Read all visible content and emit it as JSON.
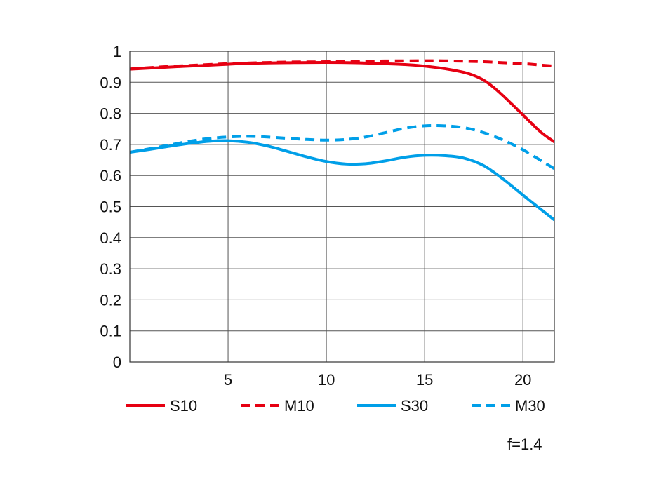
{
  "chart_data": {
    "type": "line",
    "title": "",
    "xlabel": "",
    "ylabel": "",
    "xlim": [
      0,
      21.6
    ],
    "ylim": [
      0,
      1
    ],
    "x_ticks": [
      5,
      10,
      15,
      20
    ],
    "y_ticks": [
      0,
      0.1,
      0.2,
      0.3,
      0.4,
      0.5,
      0.6,
      0.7,
      0.8,
      0.9,
      1
    ],
    "y_tick_labels": [
      "0",
      "0.1",
      "0.2",
      "0.3",
      "0.4",
      "0.5",
      "0.6",
      "0.7",
      "0.8",
      "0.9",
      "1"
    ],
    "grid": true,
    "legend_position": "bottom",
    "annotation": "f=1.4",
    "series": [
      {
        "name": "S10",
        "color": "#e60012",
        "dash": "solid",
        "x": [
          0,
          2,
          4,
          5,
          6,
          8,
          10,
          12,
          14,
          15,
          16,
          17,
          17.5,
          18,
          18.5,
          19,
          19.5,
          20,
          20.5,
          21,
          21.6
        ],
        "y": [
          0.942,
          0.949,
          0.955,
          0.958,
          0.961,
          0.963,
          0.964,
          0.962,
          0.957,
          0.952,
          0.944,
          0.932,
          0.922,
          0.907,
          0.884,
          0.856,
          0.826,
          0.795,
          0.764,
          0.735,
          0.708
        ]
      },
      {
        "name": "M10",
        "color": "#e60012",
        "dash": "dashed",
        "x": [
          0,
          2,
          4,
          5,
          6,
          8,
          10,
          12,
          14,
          16,
          18,
          19,
          20,
          21,
          21.6
        ],
        "y": [
          0.943,
          0.951,
          0.957,
          0.96,
          0.962,
          0.965,
          0.966,
          0.968,
          0.969,
          0.969,
          0.966,
          0.963,
          0.96,
          0.955,
          0.952
        ]
      },
      {
        "name": "S30",
        "color": "#009fe8",
        "dash": "solid",
        "x": [
          0,
          1,
          2,
          3,
          4,
          5,
          6,
          7,
          8,
          9,
          10,
          11,
          12,
          13,
          14,
          15,
          16,
          17,
          18,
          19,
          20,
          21,
          21.6
        ],
        "y": [
          0.675,
          0.684,
          0.694,
          0.703,
          0.71,
          0.712,
          0.707,
          0.695,
          0.678,
          0.66,
          0.645,
          0.637,
          0.638,
          0.647,
          0.659,
          0.665,
          0.664,
          0.656,
          0.632,
          0.588,
          0.537,
          0.487,
          0.457
        ]
      },
      {
        "name": "M30",
        "color": "#009fe8",
        "dash": "dashed",
        "x": [
          0,
          1,
          2,
          3,
          4,
          5,
          6,
          7,
          8,
          9,
          10,
          11,
          12,
          13,
          14,
          15,
          16,
          17,
          18,
          19,
          20,
          21,
          21.6
        ],
        "y": [
          0.675,
          0.686,
          0.698,
          0.71,
          0.719,
          0.724,
          0.726,
          0.724,
          0.72,
          0.716,
          0.714,
          0.716,
          0.724,
          0.738,
          0.752,
          0.76,
          0.76,
          0.754,
          0.738,
          0.714,
          0.683,
          0.645,
          0.622
        ]
      }
    ]
  }
}
